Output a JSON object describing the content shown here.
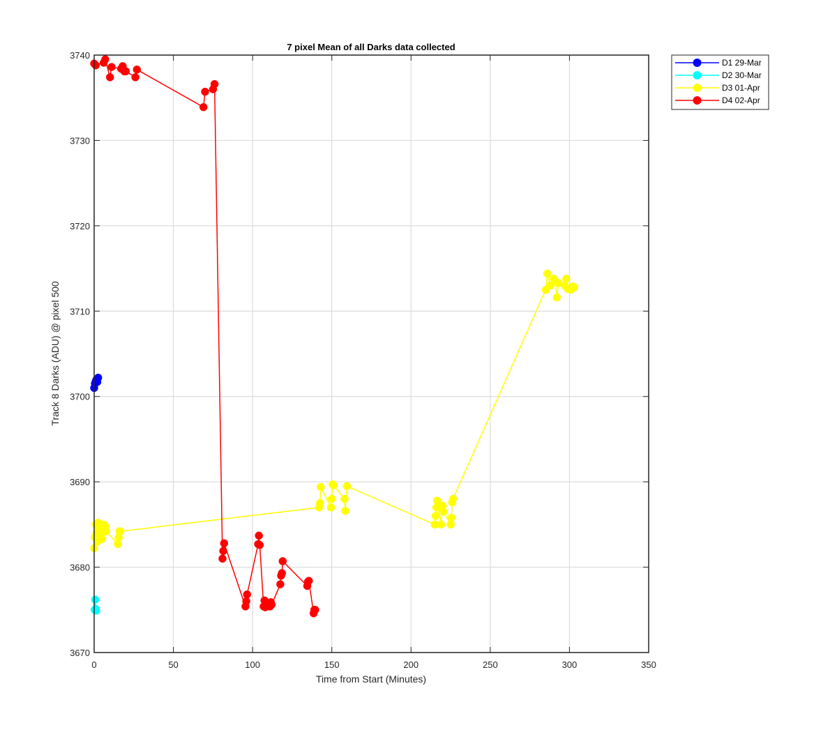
{
  "chart_data": {
    "type": "line",
    "title": "7 pixel Mean of all Darks data collected",
    "xlabel": "Time from Start (Minutes)",
    "ylabel": "Track 8 Darks (ADU) @ pixel 500",
    "xlim": [
      0,
      350
    ],
    "ylim": [
      3670,
      3740
    ],
    "xticks": [
      0,
      50,
      100,
      150,
      200,
      250,
      300,
      350
    ],
    "yticks": [
      3670,
      3680,
      3690,
      3700,
      3710,
      3720,
      3730,
      3740
    ],
    "grid": true,
    "legend_position": "outside-top-right",
    "series": [
      {
        "name": "D1 29-Mar",
        "color": "#0000ff",
        "x": [
          0.0,
          0.5,
          1.0,
          1.5,
          2.0,
          2.5
        ],
        "y": [
          3701.0,
          3701.5,
          3701.8,
          3702.0,
          3701.7,
          3702.2
        ]
      },
      {
        "name": "D2 30-Mar",
        "color": "#00ffff",
        "x": [
          0.3,
          0.7,
          1.0,
          1.3
        ],
        "y": [
          3675.0,
          3676.2,
          3675.1,
          3674.9
        ]
      },
      {
        "name": "D3 01-Apr",
        "color": "#ffff00",
        "x": [
          0,
          0.5,
          1,
          1.5,
          2,
          2.5,
          3,
          3.5,
          4,
          4.5,
          5,
          6,
          7,
          7.5,
          15,
          15.5,
          16,
          16.5,
          142,
          142.5,
          143,
          149.5,
          150,
          150.5,
          151,
          158,
          158.5,
          159.5,
          215,
          215.5,
          216,
          216.5,
          219,
          219.5,
          220,
          220.5,
          225,
          225.5,
          226,
          226.5,
          285,
          286,
          288,
          290,
          291,
          292,
          293,
          297,
          298,
          299,
          301,
          302,
          303
        ],
        "y": [
          3682.2,
          3683.5,
          3685.0,
          3684.0,
          3683.0,
          3685.2,
          3684.5,
          3684.8,
          3683.5,
          3684.0,
          3683.3,
          3685.0,
          3684.8,
          3684.2,
          3682.7,
          3683.5,
          3684.2,
          3684.2,
          3687.0,
          3687.5,
          3689.4,
          3687.0,
          3688.0,
          3689.7,
          3689.6,
          3688.0,
          3686.6,
          3689.5,
          3685.0,
          3686.0,
          3687.0,
          3687.8,
          3685.0,
          3686.8,
          3687.2,
          3686.5,
          3685.0,
          3685.8,
          3687.6,
          3688.0,
          3712.5,
          3714.4,
          3713.0,
          3713.8,
          3713.5,
          3711.6,
          3713.3,
          3713.0,
          3713.8,
          3712.6,
          3712.5,
          3712.9,
          3712.8
        ]
      },
      {
        "name": "D4 02-Apr",
        "color": "#ff0000",
        "x": [
          0,
          1,
          6,
          7,
          10,
          11,
          17,
          18,
          19,
          20,
          26,
          27,
          69,
          70,
          75,
          76,
          81,
          81.5,
          82,
          95.5,
          96,
          96.5,
          103.5,
          104,
          104.5,
          107,
          107.5,
          108,
          108.5,
          111,
          111.5,
          112,
          117.5,
          118,
          118.5,
          119,
          134.5,
          135,
          135.5,
          138.5,
          139,
          139.5
        ],
        "y": [
          3739.0,
          3738.8,
          3739.1,
          3739.5,
          3737.4,
          3738.6,
          3738.4,
          3738.7,
          3738.1,
          3738.1,
          3737.4,
          3738.3,
          3733.9,
          3735.7,
          3736.0,
          3736.6,
          3681.0,
          3681.9,
          3682.8,
          3675.4,
          3676.0,
          3676.8,
          3682.7,
          3683.7,
          3682.6,
          3675.4,
          3676.1,
          3675.3,
          3675.6,
          3675.4,
          3675.9,
          3675.6,
          3678.0,
          3679.0,
          3679.3,
          3680.7,
          3677.8,
          3678.3,
          3678.4,
          3674.6,
          3675.0,
          3675.0
        ]
      }
    ]
  }
}
